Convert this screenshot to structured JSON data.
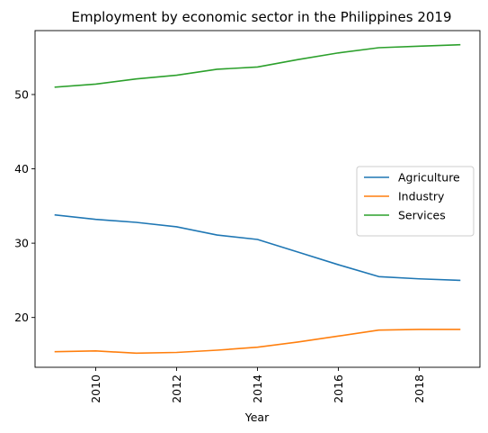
{
  "chart_data": {
    "type": "line",
    "title": "Employment by economic sector in the Philippines 2019",
    "xlabel": "Year",
    "ylabel": "",
    "x": [
      2009,
      2010,
      2011,
      2012,
      2013,
      2014,
      2015,
      2016,
      2017,
      2018,
      2019
    ],
    "xlim": [
      2008.5,
      2019.5
    ],
    "ylim": [
      13.3,
      58.6
    ],
    "xticks": [
      2010,
      2012,
      2014,
      2016,
      2018
    ],
    "yticks": [
      20,
      30,
      40,
      50
    ],
    "xtick_labels": [
      "2010",
      "2012",
      "2014",
      "2016",
      "2018"
    ],
    "ytick_labels": [
      "20",
      "30",
      "40",
      "50"
    ],
    "grid": false,
    "legend_position": "center-right",
    "series": [
      {
        "name": "Agriculture",
        "color": "#1f77b4",
        "values": [
          33.8,
          33.2,
          32.8,
          32.2,
          31.1,
          30.5,
          28.8,
          27.1,
          25.5,
          25.2,
          25.0
        ]
      },
      {
        "name": "Industry",
        "color": "#ff7f0e",
        "values": [
          15.4,
          15.5,
          15.2,
          15.3,
          15.6,
          16.0,
          16.7,
          17.5,
          18.3,
          18.4,
          18.4
        ]
      },
      {
        "name": "Services",
        "color": "#2ca02c",
        "values": [
          51.0,
          51.4,
          52.1,
          52.6,
          53.4,
          53.7,
          54.7,
          55.6,
          56.3,
          56.5,
          56.7
        ]
      }
    ]
  }
}
